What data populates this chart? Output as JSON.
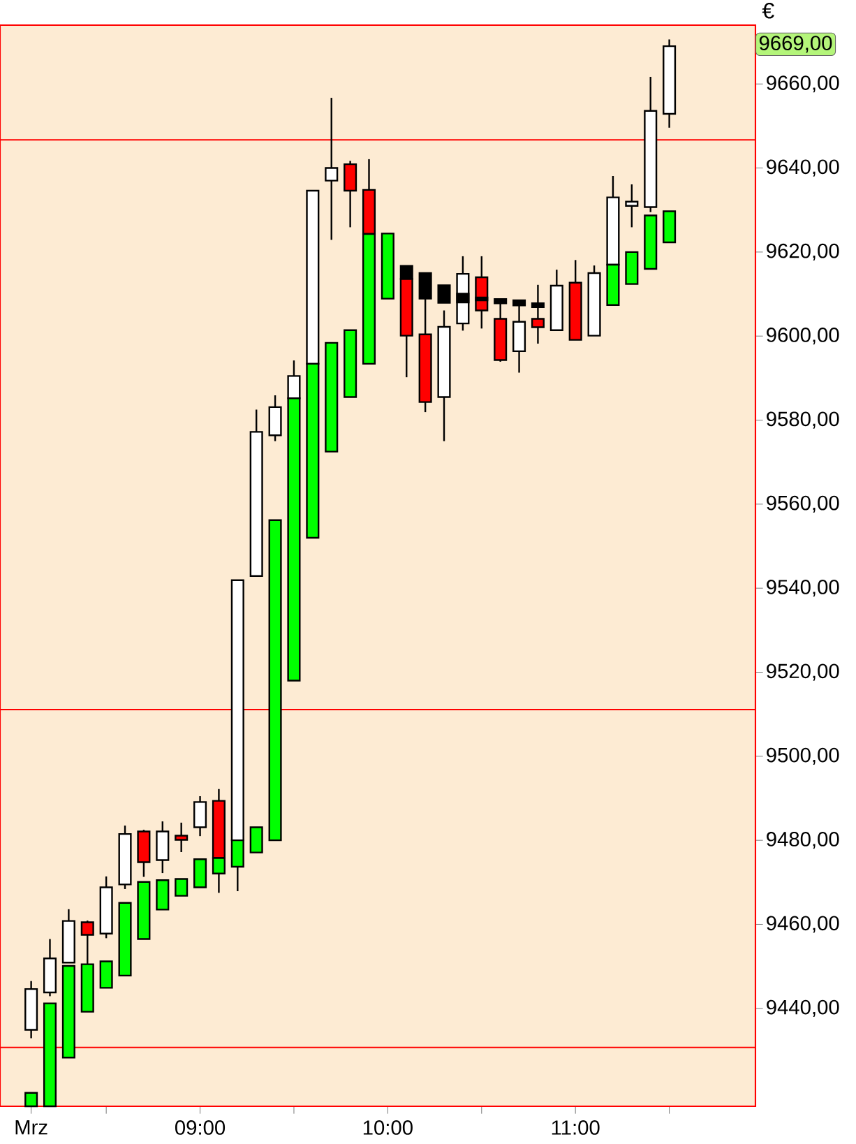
{
  "chart_data": {
    "type": "candlestick",
    "ylabel": "€",
    "x": [
      8.1,
      8.2,
      8.3,
      8.4,
      8.5,
      8.6,
      8.7,
      8.8,
      8.9,
      9.0,
      9.1,
      9.2,
      9.3,
      9.4,
      9.5,
      9.6,
      9.7,
      9.8,
      9.9,
      10.0,
      10.1,
      10.2,
      10.3,
      10.4,
      10.5,
      10.6,
      10.7,
      10.8,
      10.9,
      11.0,
      11.1,
      11.2,
      11.3,
      11.4,
      11.5
    ],
    "xlim": [
      7.934,
      11.959
    ],
    "xticks": [
      {
        "value": 8.1,
        "label": "Mrz"
      },
      {
        "value": 8.5,
        "label": null
      },
      {
        "value": 9.0,
        "label": "09:00"
      },
      {
        "value": 9.5,
        "label": null
      },
      {
        "value": 10.0,
        "label": "10:00"
      },
      {
        "value": 10.5,
        "label": null
      },
      {
        "value": 11.0,
        "label": "11:00"
      },
      {
        "value": 11.5,
        "label": null
      }
    ],
    "ylim": [
      9416.7,
      9674.0
    ],
    "yticks": [
      {
        "value": 9440,
        "label": "9440,00"
      },
      {
        "value": 9460,
        "label": "9460,00"
      },
      {
        "value": 9480,
        "label": "9480,00"
      },
      {
        "value": 9500,
        "label": "9500,00"
      },
      {
        "value": 9520,
        "label": "9520,00"
      },
      {
        "value": 9540,
        "label": "9540,00"
      },
      {
        "value": 9560,
        "label": "9560,00"
      },
      {
        "value": 9580,
        "label": "9580,00"
      },
      {
        "value": 9600,
        "label": "9600,00"
      },
      {
        "value": 9620,
        "label": "9620,00"
      },
      {
        "value": 9640,
        "label": "9640,00"
      },
      {
        "value": 9660,
        "label": "9660,00"
      }
    ],
    "series": [
      {
        "ohlc": [
          [
            9434.9,
            9446.5,
            9432.9,
            9444.6
          ],
          [
            9443.8,
            9456.5,
            9442.9,
            9451.9
          ],
          [
            9450.9,
            9463.6,
            9450.9,
            9460.8
          ],
          [
            9460.5,
            9460.9,
            9450.6,
            9457.5
          ],
          [
            9457.8,
            9471.4,
            9456.7,
            9468.8
          ],
          [
            9469.5,
            9483.5,
            9468.4,
            9481.5
          ],
          [
            9482.1,
            9482.5,
            9471.3,
            9474.8
          ],
          [
            9475.3,
            9484.5,
            9472.2,
            9482.1
          ],
          [
            9481.1,
            9484.2,
            9477.2,
            9480.1
          ],
          [
            9483.1,
            9490.5,
            9481.0,
            9489.1
          ],
          [
            9489.4,
            9492.2,
            9467.5,
            9475.8
          ],
          [
            9480.0,
            9541.9,
            9467.9,
            9541.9
          ],
          [
            9542.9,
            9582.5,
            9542.9,
            9577.2
          ],
          [
            9576.4,
            9585.9,
            9575.0,
            9583.1
          ],
          [
            9585.2,
            9594.2,
            9585.2,
            9590.5
          ],
          [
            9593.4,
            9634.6,
            9593.4,
            9634.6
          ],
          [
            9637.0,
            9656.7,
            9622.9,
            9640.0
          ],
          [
            9640.9,
            9641.7,
            9625.9,
            9634.6
          ],
          [
            9634.8,
            9642.1,
            9624.3,
            9624.3
          ],
          null,
          [
            9613.6,
            9616.7,
            9590.2,
            9600.1
          ],
          [
            9600.4,
            9608.9,
            9581.9,
            9584.3
          ],
          [
            9585.5,
            9606.1,
            9575.0,
            9602.2
          ],
          [
            9603.0,
            9619.0,
            9601.3,
            9614.8
          ],
          [
            9614.0,
            9619.0,
            9601.8,
            9606.1
          ],
          [
            9604.1,
            9607.8,
            9593.9,
            9594.3
          ],
          [
            9596.4,
            9607.3,
            9591.3,
            9603.4
          ],
          [
            9604.1,
            9612.2,
            9598.2,
            9602.1
          ],
          [
            9601.4,
            9615.8,
            9601.4,
            9612.0
          ],
          [
            9612.7,
            9618.1,
            9599.1,
            9599.1
          ],
          [
            9600.1,
            9616.8,
            9600.1,
            9615.0
          ],
          [
            9617.0,
            9638.1,
            9617.0,
            9633.0
          ],
          [
            9631.0,
            9636.1,
            9625.9,
            9632.0
          ],
          [
            9630.7,
            9661.7,
            9629.5,
            9653.6
          ],
          [
            9652.9,
            9670.6,
            9649.6,
            9669.0
          ]
        ],
        "colors": [
          "#ffffff",
          "#ffffff",
          "#ffffff",
          "#ff0000",
          "#ffffff",
          "#ffffff",
          "#ff0000",
          "#ffffff",
          "#ff0000",
          "#ffffff",
          "#ff0000",
          "#ffffff",
          "#ffffff",
          "#ffffff",
          "#ffffff",
          "#ffffff",
          "#ffffff",
          "#ff0000",
          "#ff0000",
          null,
          "#ff0000",
          "#ff0000",
          "#ffffff",
          "#ffffff",
          "#ff0000",
          "#ff0000",
          "#ffffff",
          "#ff0000",
          "#ffffff",
          "#ff0000",
          "#ffffff",
          "#ffffff",
          "#ffffff",
          "#ffffff",
          "#ffffff"
        ]
      },
      {
        "type": "bar",
        "values": [
          3.2,
          24.5,
          21.8,
          11.3,
          6.3,
          17.3,
          13.6,
          7.0,
          4.0,
          6.7,
          3.7,
          6.3,
          6.0,
          76.2,
          67.2,
          41.4,
          25.9,
          15.9,
          30.9,
          15.5,
          3.1,
          6.1,
          4.2,
          2.1,
          0.7,
          1.0,
          1.2,
          0.9,
          null,
          null,
          null,
          9.6,
          7.6,
          12.7,
          7.4
        ],
        "base": [
          9416.7,
          9416.7,
          9428.3,
          9439.2,
          9444.9,
          9447.8,
          9456.5,
          9463.5,
          9466.8,
          9468.8,
          9472.1,
          9473.7,
          9477.1,
          9480.0,
          9518.0,
          9552.0,
          9572.5,
          9585.5,
          9593.4,
          9608.9,
          9613.6,
          9608.9,
          9607.9,
          9608.0,
          9608.5,
          9607.8,
          9607.3,
          9606.9,
          null,
          null,
          null,
          9607.4,
          9612.4,
          9616.0,
          9622.3
        ],
        "colors": [
          "#00ff00",
          "#00ff00",
          "#00ff00",
          "#00ff00",
          "#00ff00",
          "#00ff00",
          "#00ff00",
          "#00ff00",
          "#00ff00",
          "#00ff00",
          "#00ff00",
          "#00ff00",
          "#00ff00",
          "#00ff00",
          "#00ff00",
          "#00ff00",
          "#00ff00",
          "#00ff00",
          "#00ff00",
          "#00ff00",
          "#000000",
          "#000000",
          "#000000",
          "#000000",
          "#000000",
          "#000000",
          "#000000",
          "#000000",
          null,
          null,
          null,
          "#00ff00",
          "#00ff00",
          "#00ff00",
          "#00ff00"
        ]
      }
    ],
    "ref_lines": [
      {
        "axis": "y",
        "value": 9646.7,
        "color": "#ff0000"
      },
      {
        "axis": "y",
        "value": 9511.1,
        "color": "#ff0000"
      },
      {
        "axis": "y",
        "value": 9430.7,
        "color": "#ff0000"
      }
    ],
    "annotations": [
      "9669,00"
    ]
  }
}
